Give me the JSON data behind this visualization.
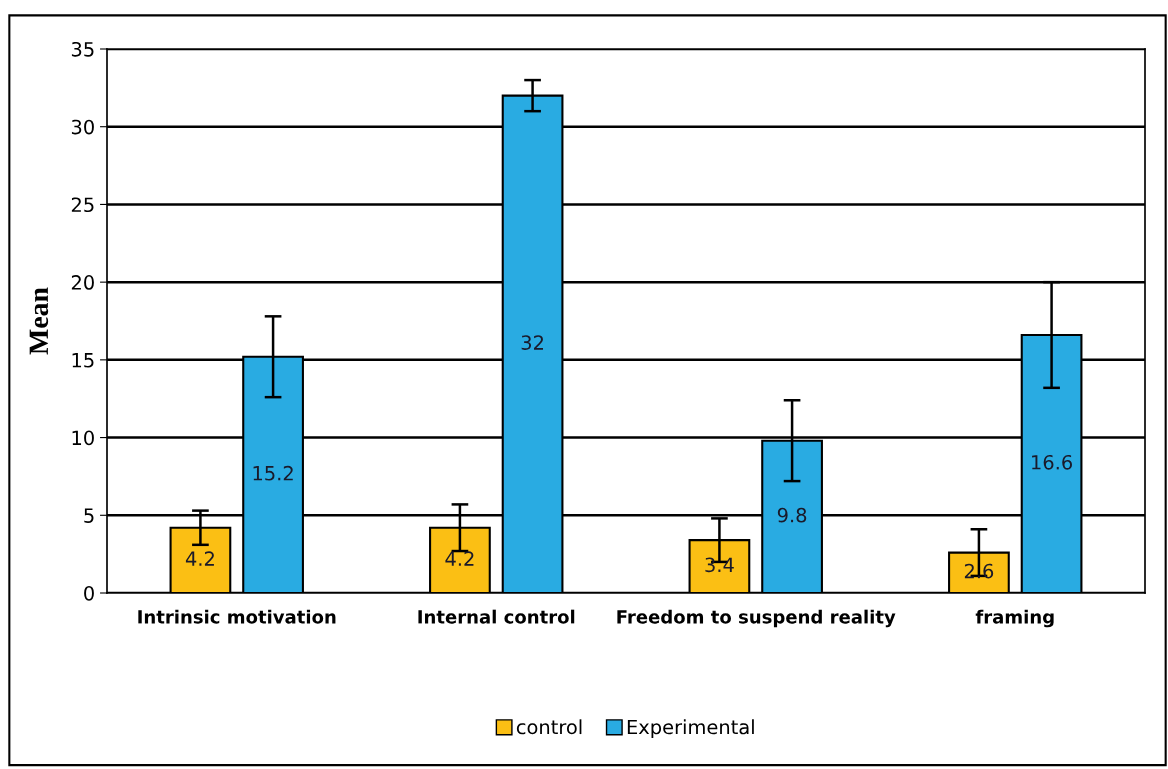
{
  "chart_data": {
    "type": "bar",
    "ylabel": "Mean",
    "categories": [
      "Intrinsic motivation",
      "Internal control",
      "Freedom to suspend reality",
      "framing"
    ],
    "series": [
      {
        "name": "control",
        "color": "#fbbf14",
        "values": [
          4.2,
          4.2,
          3.4,
          2.6
        ],
        "errors": [
          1.1,
          1.5,
          1.4,
          1.5
        ]
      },
      {
        "name": "Experimental",
        "color": "#29abe2",
        "values": [
          15.2,
          32,
          9.8,
          16.6
        ],
        "errors": [
          2.6,
          1.0,
          2.6,
          3.4
        ]
      }
    ],
    "ylim": [
      0,
      35
    ],
    "yticks": [
      0,
      5,
      10,
      15,
      20,
      25,
      30,
      35
    ],
    "grid": "y",
    "legend": "bottom",
    "data_labels": true
  }
}
